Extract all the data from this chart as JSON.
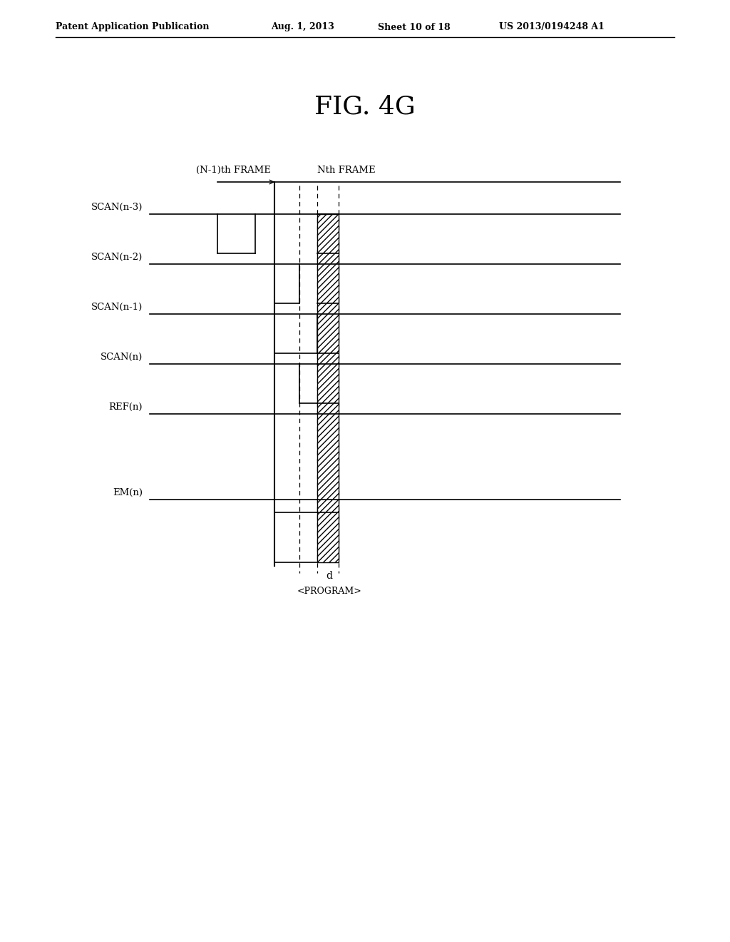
{
  "patent_header_left": "Patent Application Publication",
  "patent_header_mid": "Aug. 1, 2013   Sheet 10 of 18",
  "patent_header_right": "US 2013/0194248 A1",
  "figure_title": "FIG. 4G",
  "nm1_frame_label": "(N-1)th FRAME",
  "nth_frame_label": "Nth FRAME",
  "signals": [
    "SCAN(n-3)",
    "SCAN(n-2)",
    "SCAN(n-1)",
    "SCAN(n)",
    "REF(n)",
    "EM(n)"
  ],
  "program_label": "d",
  "program_sublabel": "<PROGRAM>",
  "background_color": "#ffffff"
}
